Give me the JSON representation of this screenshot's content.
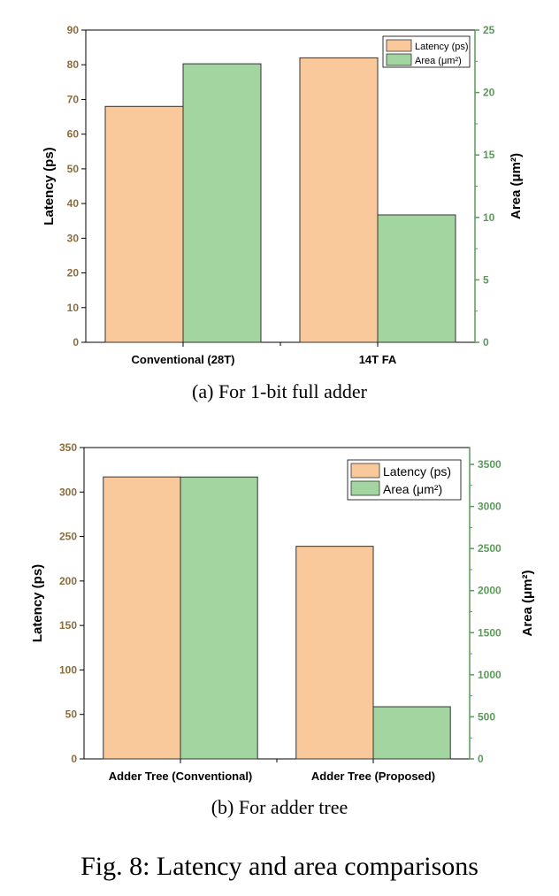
{
  "chart_data": [
    {
      "type": "bar",
      "categories": [
        "Conventional (28T)",
        "14T FA"
      ],
      "series": [
        {
          "name": "Latency (ps)",
          "values": [
            68,
            82
          ],
          "axis": "left",
          "color": "#f9c89b"
        },
        {
          "name": "Area (μm²)",
          "values": [
            22.3,
            10.2
          ],
          "axis": "right",
          "color": "#a2d5a0"
        }
      ],
      "ylabel": "Latency (ps)",
      "ylabel_right": "Area (μm²)",
      "ylim": [
        0,
        90
      ],
      "ylim_right": [
        0,
        25
      ],
      "yticks": [
        "0",
        "10",
        "20",
        "30",
        "40",
        "50",
        "60",
        "70",
        "80",
        "90"
      ],
      "yticks_right": [
        "0",
        "5",
        "10",
        "15",
        "20",
        "25"
      ],
      "legend_position": "top-right",
      "caption": "(a) For 1-bit full adder"
    },
    {
      "type": "bar",
      "categories": [
        "Adder Tree (Conventional)",
        "Adder Tree (Proposed)"
      ],
      "series": [
        {
          "name": "Latency (ps)",
          "values": [
            317,
            239
          ],
          "axis": "left",
          "color": "#f9c89b"
        },
        {
          "name": "Area (μm²)",
          "values": [
            3350,
            620
          ],
          "axis": "right",
          "color": "#a2d5a0"
        }
      ],
      "ylabel": "Latency (ps)",
      "ylabel_right": "Area (μm²)",
      "ylim": [
        0,
        350
      ],
      "ylim_right": [
        0,
        3700
      ],
      "yticks": [
        "0",
        "50",
        "100",
        "150",
        "200",
        "250",
        "300",
        "350"
      ],
      "yticks_right": [
        "0",
        "500",
        "1000",
        "1500",
        "2000",
        "2500",
        "3000",
        "3500"
      ],
      "legend_position": "top-right",
      "caption": "(b) For adder tree"
    }
  ],
  "figure_caption": "Fig. 8: Latency and area comparisons",
  "colors": {
    "latency": "#f9c89b",
    "area": "#a2d5a0",
    "left_axis": "#8a6d3b",
    "right_axis": "#5a9a5a"
  }
}
